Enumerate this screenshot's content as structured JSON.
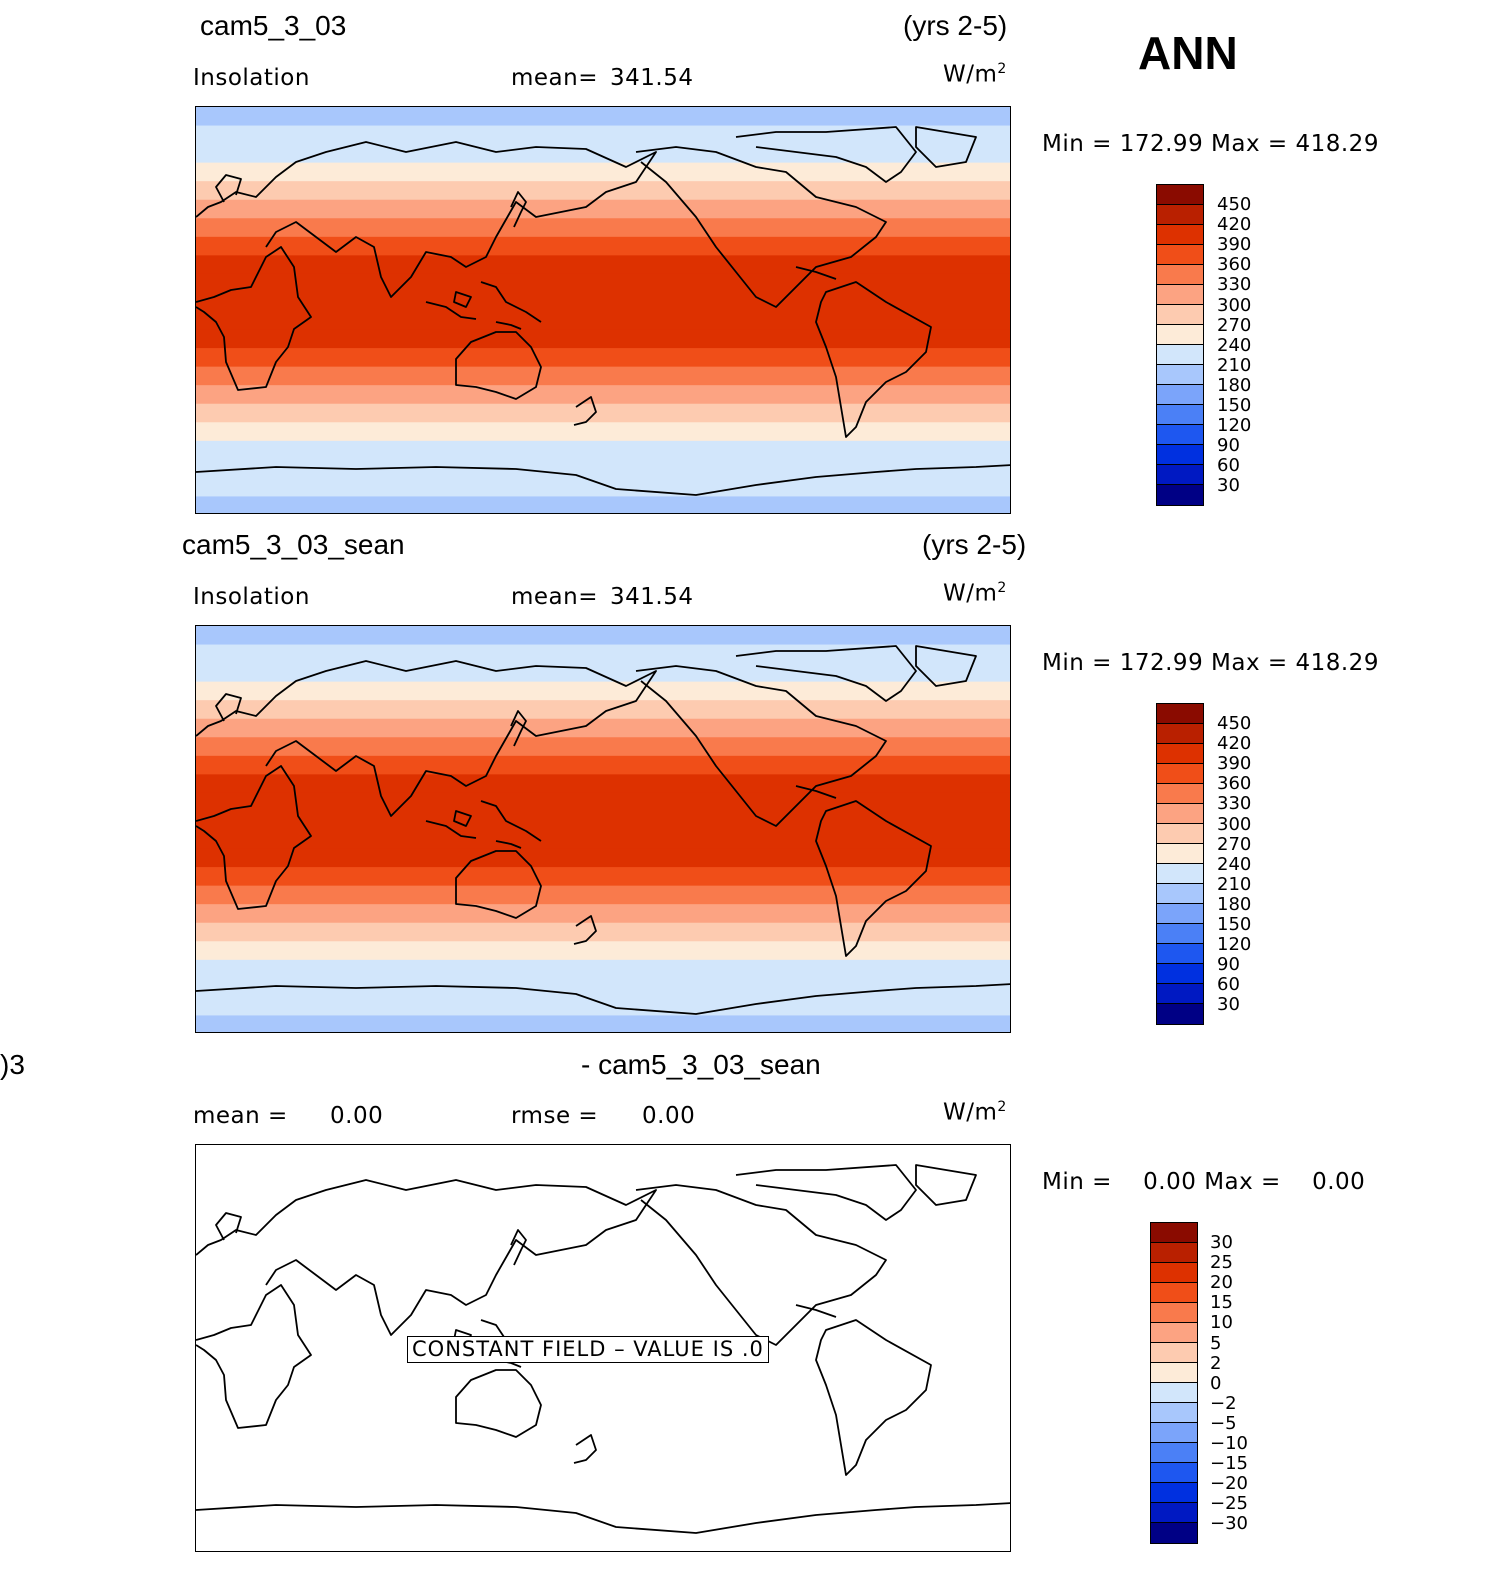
{
  "season": "ANN",
  "palette": [
    "#000085",
    "#0019c2",
    "#0030e0",
    "#1e57f0",
    "#4b80f6",
    "#7ba4fa",
    "#a8c7fc",
    "#d2e6fb",
    "#fdebd8",
    "#fdcbb0",
    "#fca382",
    "#f97a4c",
    "#f04e18",
    "#dd3100",
    "#b92000",
    "#8a0b00"
  ],
  "panels": [
    {
      "case_name": "cam5_3_03",
      "years": "(yrs 2-5)",
      "left_label": "Insolation",
      "mid_label": "mean=",
      "mid_value": "341.54",
      "units_base": "W/m",
      "units_exp": "2",
      "stats": {
        "min_label": "Min  =",
        "min": "172.99",
        "max_label": "Max  =",
        "max": "418.29"
      },
      "levels": [
        "450",
        "420",
        "390",
        "360",
        "330",
        "300",
        "270",
        "240",
        "210",
        "180",
        "150",
        "120",
        "90",
        "60",
        "30"
      ],
      "bands": [
        6,
        7,
        7,
        8,
        9,
        10,
        11,
        12,
        13,
        13,
        13,
        13,
        13,
        12,
        11,
        10,
        9,
        8,
        7,
        7,
        7,
        6
      ]
    },
    {
      "case_name": "cam5_3_03_sean",
      "years": "(yrs 2-5)",
      "left_label": "Insolation",
      "mid_label": "mean=",
      "mid_value": "341.54",
      "units_base": "W/m",
      "units_exp": "2",
      "stats": {
        "min_label": "Min  =",
        "min": "172.99",
        "max_label": "Max  =",
        "max": "418.29"
      },
      "levels": [
        "450",
        "420",
        "390",
        "360",
        "330",
        "300",
        "270",
        "240",
        "210",
        "180",
        "150",
        "120",
        "90",
        "60",
        "30"
      ],
      "bands": [
        6,
        7,
        7,
        8,
        9,
        10,
        11,
        12,
        13,
        13,
        13,
        13,
        13,
        12,
        11,
        10,
        9,
        8,
        7,
        7,
        7,
        6
      ]
    },
    {
      "case_name_left": ")3",
      "case_name": "- cam5_3_03_sean",
      "left_label": "mean =",
      "left_value": "0.00",
      "mid_label": "rmse =",
      "mid_value": "0.00",
      "units_base": "W/m",
      "units_exp": "2",
      "stats": {
        "min_label": "Min  =",
        "min": "0.00",
        "max_label": "Max  =",
        "max": "0.00"
      },
      "levels": [
        "30",
        "25",
        "20",
        "15",
        "10",
        "5",
        "2",
        "0",
        "−2",
        "−5",
        "−10",
        "−15",
        "−20",
        "−25",
        "−30"
      ],
      "constant_note": "CONSTANT FIELD – VALUE IS .0"
    }
  ]
}
